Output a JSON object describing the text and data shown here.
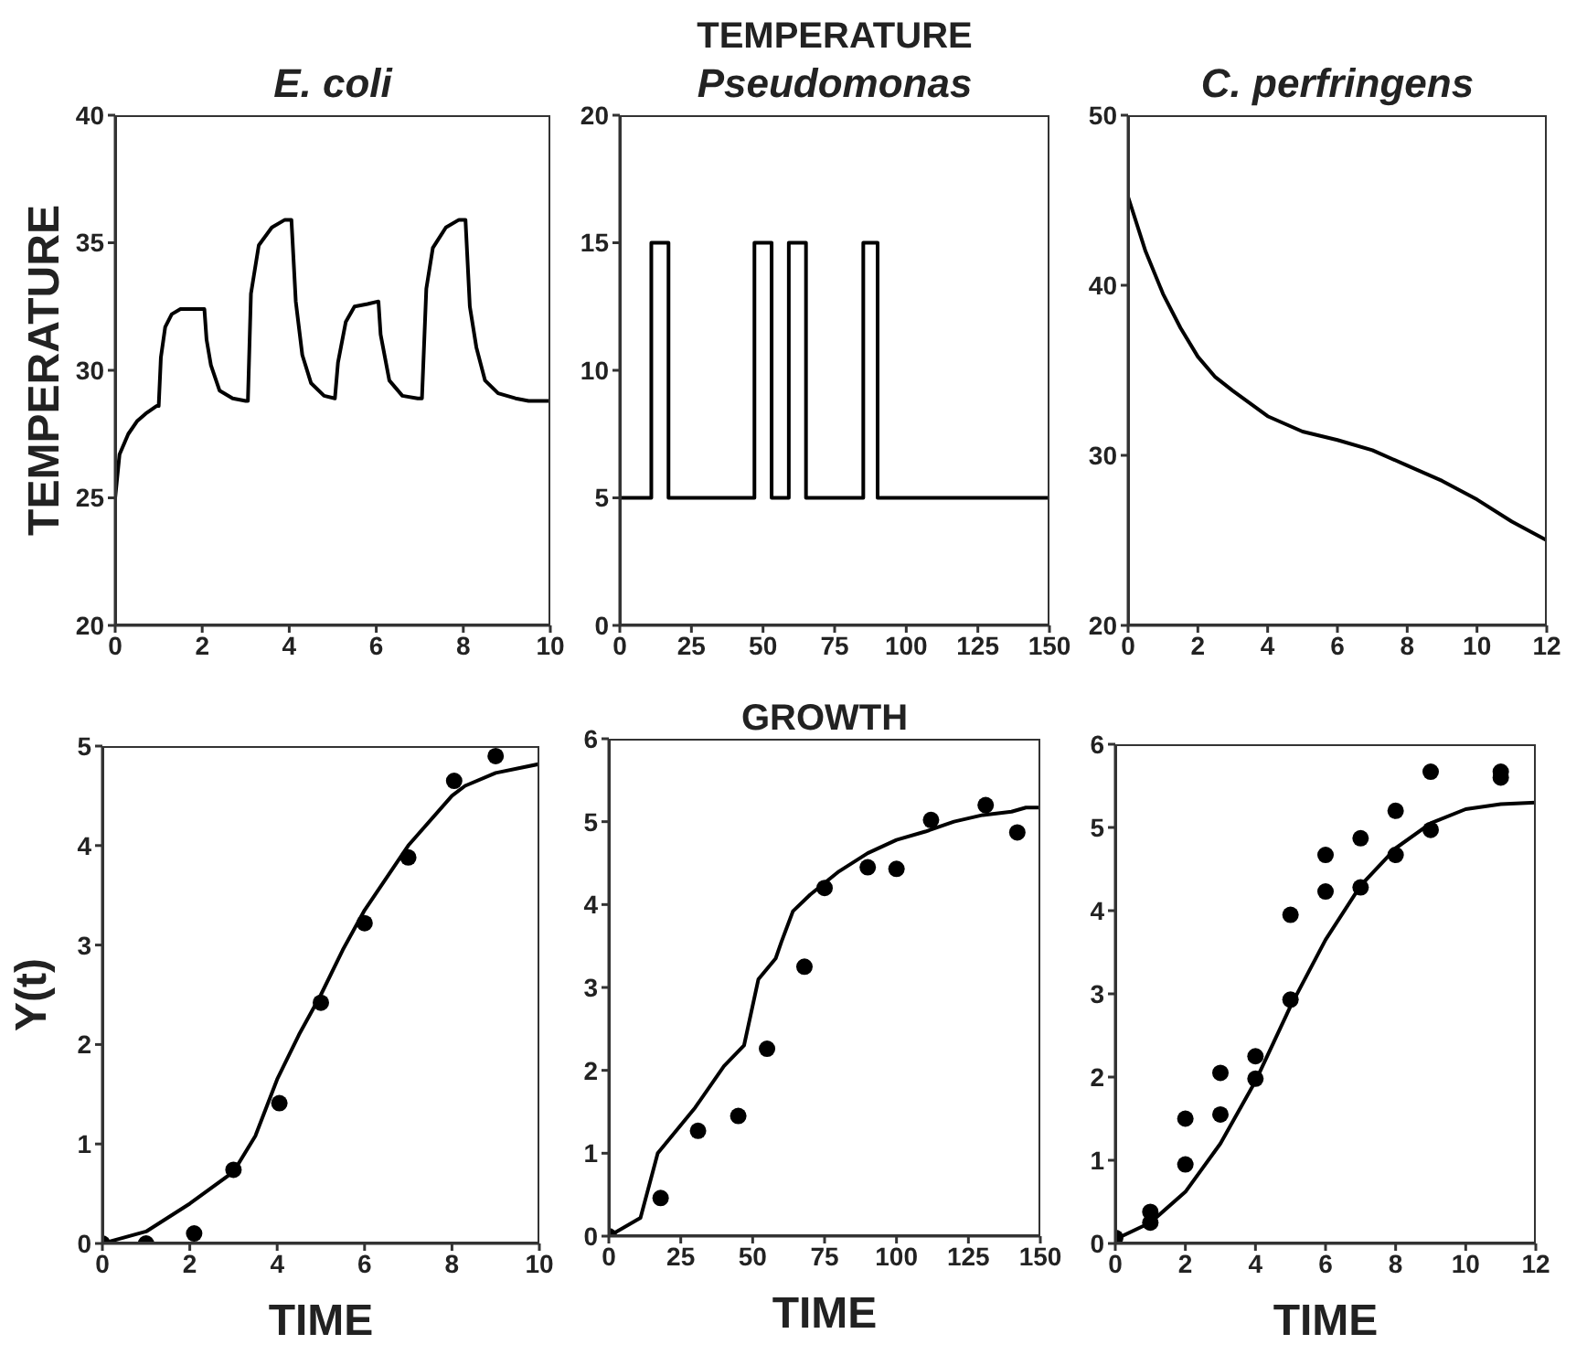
{
  "chart_data": [
    {
      "type": "line",
      "subtitle": "E. coli",
      "ylabel": "TEMPERATURE",
      "xlim": [
        0,
        10
      ],
      "xticks": [
        0,
        2,
        4,
        6,
        8,
        10
      ],
      "ylim": [
        20,
        40
      ],
      "yticks": [
        20,
        25,
        30,
        35,
        40
      ],
      "series": [
        {
          "color": "#000000",
          "x": [
            0,
            0.1,
            0.3,
            0.5,
            0.7,
            0.95,
            1.0,
            1.05,
            1.15,
            1.3,
            1.5,
            1.9,
            2.05,
            2.1,
            2.2,
            2.4,
            2.7,
            3.0,
            3.05,
            3.12,
            3.3,
            3.6,
            3.9,
            4.05,
            4.15,
            4.3,
            4.5,
            4.8,
            5.05,
            5.12,
            5.3,
            5.5,
            5.8,
            6.05,
            6.1,
            6.3,
            6.6,
            6.95,
            7.05,
            7.15,
            7.3,
            7.6,
            7.9,
            8.05,
            8.15,
            8.3,
            8.5,
            8.8,
            9.2,
            9.5,
            10
          ],
          "values": [
            25,
            26.7,
            27.5,
            28,
            28.3,
            28.6,
            28.6,
            30.5,
            31.7,
            32.2,
            32.4,
            32.4,
            32.4,
            31.2,
            30.2,
            29.2,
            28.9,
            28.8,
            28.8,
            33,
            34.9,
            35.6,
            35.9,
            35.9,
            32.7,
            30.6,
            29.5,
            29,
            28.9,
            30.3,
            31.9,
            32.5,
            32.6,
            32.7,
            31.4,
            29.6,
            29,
            28.9,
            28.9,
            33.2,
            34.8,
            35.6,
            35.9,
            35.9,
            32.5,
            30.9,
            29.6,
            29.1,
            28.9,
            28.8,
            28.8
          ]
        }
      ]
    },
    {
      "type": "line",
      "title": "TEMPERATURE",
      "subtitle": "Pseudomonas",
      "xlim": [
        0,
        150
      ],
      "xticks": [
        0,
        25,
        50,
        75,
        100,
        125,
        150
      ],
      "ylim": [
        0,
        20
      ],
      "yticks": [
        0,
        5,
        10,
        15,
        20
      ],
      "series": [
        {
          "color": "#000000",
          "x": [
            0,
            11,
            11,
            17,
            17,
            47,
            47,
            53,
            53,
            59,
            59,
            65,
            65,
            85,
            85,
            90,
            90,
            150
          ],
          "values": [
            5,
            5,
            15,
            15,
            5,
            5,
            15,
            15,
            5,
            5,
            15,
            15,
            5,
            5,
            15,
            15,
            5,
            5
          ]
        }
      ]
    },
    {
      "type": "line",
      "subtitle": "C. perfringens",
      "xlim": [
        0,
        12
      ],
      "xticks": [
        0,
        2,
        4,
        6,
        8,
        10,
        12
      ],
      "ylim": [
        20,
        50
      ],
      "yticks": [
        20,
        30,
        40,
        50
      ],
      "series": [
        {
          "color": "#000000",
          "x": [
            0,
            0.5,
            1,
            1.5,
            2,
            2.5,
            3,
            4,
            5,
            6,
            7,
            8,
            9,
            10,
            11,
            12
          ],
          "values": [
            45.2,
            42,
            39.5,
            37.5,
            35.8,
            34.6,
            33.8,
            32.3,
            31.4,
            30.9,
            30.3,
            29.4,
            28.5,
            27.4,
            26.1,
            25
          ]
        }
      ]
    },
    {
      "type": "line",
      "ylabel": "Y(t)",
      "xlabel": "TIME",
      "xlim": [
        0,
        10
      ],
      "xticks": [
        0,
        2,
        4,
        6,
        8,
        10
      ],
      "ylim": [
        0,
        5
      ],
      "yticks": [
        0,
        1,
        2,
        3,
        4,
        5
      ],
      "series": [
        {
          "color": "#000000",
          "x": [
            0,
            1,
            2,
            3,
            3.5,
            4,
            4.5,
            5,
            5.5,
            6,
            7,
            8,
            8.3,
            9,
            10
          ],
          "values": [
            0,
            0.12,
            0.4,
            0.72,
            1.08,
            1.65,
            2.1,
            2.5,
            2.95,
            3.35,
            4,
            4.5,
            4.6,
            4.73,
            4.82
          ]
        },
        {
          "type": "scatter",
          "marker": "circle",
          "color": "#000000",
          "x": [
            0,
            1,
            2.1,
            3,
            4.05,
            5,
            6,
            7,
            8.05,
            9
          ],
          "values": [
            0,
            0,
            0.1,
            0.74,
            1.41,
            2.42,
            3.22,
            3.88,
            4.65,
            4.9
          ]
        }
      ]
    },
    {
      "type": "line",
      "title": "GROWTH",
      "xlabel": "TIME",
      "xlim": [
        0,
        150
      ],
      "xticks": [
        0,
        25,
        50,
        75,
        100,
        125,
        150
      ],
      "ylim": [
        0,
        6
      ],
      "yticks": [
        0,
        1,
        2,
        3,
        4,
        5,
        6
      ],
      "series": [
        {
          "color": "#000000",
          "x": [
            0,
            11,
            17,
            30,
            40,
            47,
            52,
            58,
            60,
            64,
            70,
            80,
            90,
            100,
            110,
            120,
            130,
            140,
            145,
            150
          ],
          "values": [
            0,
            0.22,
            1,
            1.55,
            2.05,
            2.3,
            3.1,
            3.35,
            3.55,
            3.92,
            4.12,
            4.4,
            4.62,
            4.78,
            4.88,
            5,
            5.08,
            5.12,
            5.17,
            5.17
          ]
        },
        {
          "type": "scatter",
          "marker": "circle",
          "color": "#000000",
          "x": [
            0,
            18,
            31,
            45,
            55,
            68,
            75,
            90,
            100,
            112,
            131,
            142
          ],
          "values": [
            0,
            0.46,
            1.27,
            1.45,
            2.26,
            3.25,
            4.2,
            4.45,
            4.43,
            5.02,
            5.2,
            4.87
          ]
        }
      ]
    },
    {
      "type": "line",
      "xlabel": "TIME",
      "xlim": [
        0,
        12
      ],
      "xticks": [
        0,
        2,
        4,
        6,
        8,
        10,
        12
      ],
      "ylim": [
        0,
        6
      ],
      "yticks": [
        0,
        1,
        2,
        3,
        4,
        5,
        6
      ],
      "series": [
        {
          "color": "#000000",
          "x": [
            0,
            1,
            2,
            3,
            4,
            5,
            6,
            7,
            8,
            9,
            10,
            11,
            12
          ],
          "values": [
            0.05,
            0.25,
            0.62,
            1.2,
            1.95,
            2.85,
            3.65,
            4.3,
            4.75,
            5.05,
            5.22,
            5.28,
            5.3
          ]
        },
        {
          "type": "scatter",
          "marker": "circle",
          "color": "#000000",
          "x": [
            0,
            1,
            1,
            2,
            2,
            3,
            3,
            4,
            4,
            5,
            5,
            6,
            6,
            7,
            7,
            8,
            8,
            9,
            9,
            11,
            11
          ],
          "values": [
            0.07,
            0.38,
            0.25,
            1.5,
            0.95,
            2.05,
            1.55,
            2.25,
            1.98,
            3.95,
            2.93,
            4.67,
            4.23,
            4.87,
            4.28,
            5.2,
            4.67,
            5.67,
            4.97,
            5.67,
            5.6
          ]
        }
      ]
    }
  ]
}
